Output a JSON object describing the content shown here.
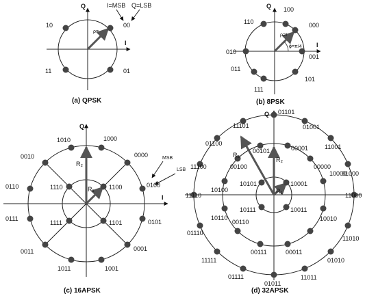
{
  "qpsk": {
    "caption": "(a) QPSK",
    "q_axis": "Q",
    "i_axis": "I",
    "rho": "ρ=",
    "msb_note": "I=MSB",
    "lsb_note": "Q=LSB",
    "symbols": [
      "00",
      "10",
      "11",
      "01"
    ]
  },
  "psk8": {
    "caption": "(b) 8PSK",
    "q_axis": "Q",
    "i_axis": "I",
    "rho": "ρ=I",
    "angle": "ɸ=π/4",
    "symbols": [
      "000",
      "100",
      "110",
      "010",
      "011",
      "111",
      "101",
      "001"
    ]
  },
  "apsk16": {
    "caption": "(c) 16APSK",
    "q_axis": "Q",
    "i_axis": "I",
    "r_outer": "R₂",
    "r_inner": "R₁",
    "msb_note": "MSB",
    "lsb_note": "LSB",
    "inner_symbols": [
      "1100",
      "1110",
      "1111",
      "1101"
    ],
    "outer_symbols": [
      "1000",
      "0000",
      "0100",
      "0101",
      "0001",
      "1001",
      "1011",
      "0011",
      "0111",
      "0110",
      "0010",
      "1010"
    ]
  },
  "apsk32": {
    "caption": "(d) 32APSK",
    "q_axis": "Q",
    "r3": "R₃",
    "r2": "R₂",
    "r1": "R₁",
    "inner_symbols": [
      "10001",
      "10101",
      "10111",
      "10011"
    ],
    "middle_symbols": [
      "00001",
      "00101",
      "00100",
      "10100",
      "10110",
      "00110",
      "00111",
      "00011",
      "10010",
      "10000",
      "00000"
    ],
    "outer_symbols": [
      "01101",
      "01001",
      "11001",
      "01000",
      "11000",
      "11010",
      "01010",
      "11011",
      "01011",
      "01111",
      "11111",
      "01110",
      "11110",
      "11100",
      "01100",
      "11101"
    ]
  }
}
